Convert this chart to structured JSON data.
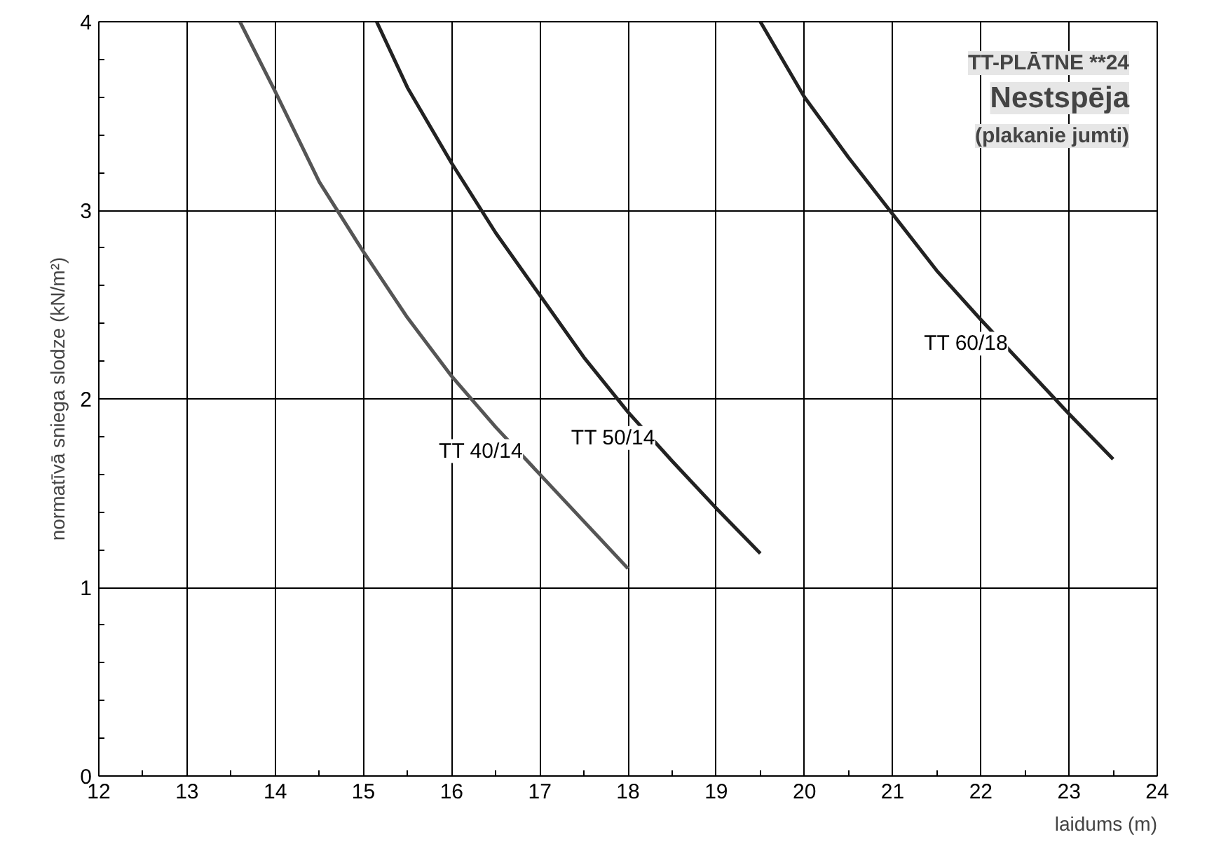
{
  "chart_data": {
    "type": "line",
    "title": "TT-PLĀTNE **24",
    "subtitle": "Nestspēja",
    "annotations": [
      "(plakanie jumti)"
    ],
    "xlabel": "laidums (m)",
    "ylabel": "normatīvā sniega slodze (kN/m²)",
    "xlim": [
      12,
      24
    ],
    "ylim": [
      0,
      4
    ],
    "xticks": [
      12,
      13,
      14,
      15,
      16,
      17,
      18,
      19,
      20,
      21,
      22,
      23,
      24
    ],
    "yticks": [
      0,
      1,
      2,
      3,
      4
    ],
    "grid": true,
    "marker": "none",
    "line_style": "solid",
    "series": [
      {
        "name": "TT 40/14",
        "color": "#555555",
        "x": [
          13.6,
          14,
          14.5,
          15,
          15.5,
          16,
          16.5,
          17,
          17.5,
          18
        ],
        "values": [
          4,
          3.63,
          3.15,
          2.78,
          2.43,
          2.12,
          1.85,
          1.6,
          1.35,
          1.1
        ]
      },
      {
        "name": "TT 50/14",
        "color": "#222222",
        "x": [
          15.15,
          15.5,
          16,
          16.5,
          17,
          17.5,
          18,
          18.5,
          19,
          19.5
        ],
        "values": [
          4,
          3.65,
          3.25,
          2.88,
          2.55,
          2.22,
          1.93,
          1.67,
          1.42,
          1.18
        ]
      },
      {
        "name": "TT 60/18",
        "color": "#222222",
        "x": [
          19.5,
          20,
          20.5,
          21,
          21.5,
          22,
          22.5,
          23,
          23.5
        ],
        "values": [
          4,
          3.6,
          3.28,
          2.98,
          2.68,
          2.42,
          2.17,
          1.92,
          1.68
        ]
      }
    ]
  }
}
